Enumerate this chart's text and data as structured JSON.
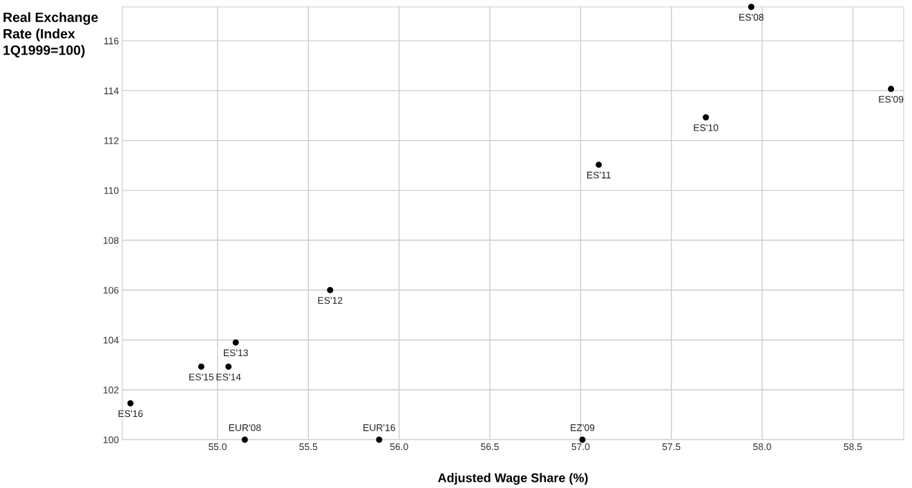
{
  "chart_data": {
    "type": "scatter",
    "xlabel": "Adjusted Wage Share (%)",
    "ylabel": "Real Exchange\nRate (Index\n1Q1999=100)",
    "series": [
      {
        "color": "#000000",
        "x": [
          57.94,
          58.71,
          57.69,
          57.1,
          55.62,
          55.1,
          55.06,
          54.91,
          54.52,
          55.15,
          55.89,
          57.01
        ],
        "values": [
          117.36,
          114.07,
          112.93,
          111.03,
          106.0,
          103.9,
          102.93,
          102.93,
          101.46,
          100.0,
          100.0,
          100.0
        ]
      }
    ],
    "annotations": [
      {
        "text": "ES'08",
        "x": 57.94,
        "y": 117.36
      },
      {
        "text": "ES'09",
        "x": 58.71,
        "y": 114.07
      },
      {
        "text": "ES'10",
        "x": 57.69,
        "y": 112.93
      },
      {
        "text": "ES'11",
        "x": 57.1,
        "y": 111.03
      },
      {
        "text": "ES'12",
        "x": 55.62,
        "y": 106.0
      },
      {
        "text": "ES'13",
        "x": 55.1,
        "y": 103.9
      },
      {
        "text": "ES'14",
        "x": 55.06,
        "y": 102.93
      },
      {
        "text": "ES'15",
        "x": 54.91,
        "y": 102.93
      },
      {
        "text": "ES'16",
        "x": 54.52,
        "y": 101.46
      },
      {
        "text": "EUR'08",
        "x": 55.15,
        "y": 100.0
      },
      {
        "text": "EUR'16",
        "x": 55.89,
        "y": 100.0
      },
      {
        "text": "EZ'09",
        "x": 57.01,
        "y": 100.0
      }
    ],
    "xlim": [
      54.475,
      58.78
    ],
    "ylim": [
      100,
      117.36
    ],
    "xticks": [
      {
        "value": 55,
        "label": "55.0"
      },
      55.5,
      {
        "value": 56,
        "label": "56.0"
      },
      56.5,
      {
        "value": 57,
        "label": "57.0"
      },
      57.5,
      {
        "value": 58,
        "label": "58.0"
      },
      58.5
    ],
    "yticks": [
      100,
      102,
      104,
      106,
      108,
      110,
      112,
      114,
      116
    ],
    "grid": true,
    "marker": "circle"
  }
}
